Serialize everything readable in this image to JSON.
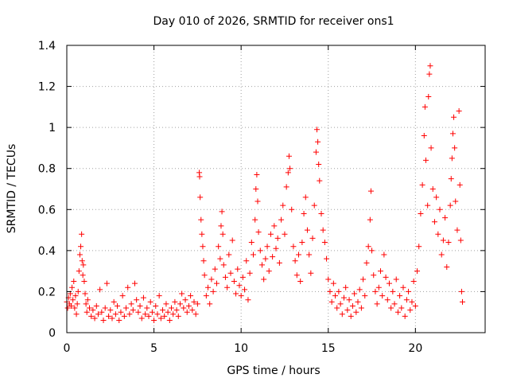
{
  "chart_data": {
    "type": "scatter",
    "title": "Day 010 of 2026, SRMTID for receiver ons1",
    "xlabel": "GPS time / hours",
    "ylabel": "SRMTID / TECUs",
    "xlim": [
      0,
      24
    ],
    "ylim": [
      0,
      1.4
    ],
    "xticks": [
      0,
      5,
      10,
      15,
      20
    ],
    "xtick_labels": [
      "0",
      "5",
      "10",
      "15",
      "20"
    ],
    "yticks": [
      0,
      0.2,
      0.4,
      0.6,
      0.8,
      1.0,
      1.2,
      1.4
    ],
    "ytick_labels": [
      "0",
      "0.2",
      "0.4",
      "0.6",
      "0.8",
      "1",
      "1.2",
      "1.4"
    ],
    "grid": true,
    "marker": "+",
    "color": "#ff0000",
    "series": [
      {
        "name": "ons1 SRMTID",
        "points": [
          [
            0.0,
            0.15
          ],
          [
            0.05,
            0.12
          ],
          [
            0.1,
            0.17
          ],
          [
            0.15,
            0.14
          ],
          [
            0.2,
            0.19
          ],
          [
            0.25,
            0.13
          ],
          [
            0.3,
            0.22
          ],
          [
            0.35,
            0.16
          ],
          [
            0.4,
            0.25
          ],
          [
            0.45,
            0.12
          ],
          [
            0.5,
            0.18
          ],
          [
            0.55,
            0.09
          ],
          [
            0.6,
            0.14
          ],
          [
            0.65,
            0.2
          ],
          [
            0.7,
            0.3
          ],
          [
            0.75,
            0.38
          ],
          [
            0.8,
            0.42
          ],
          [
            0.85,
            0.48
          ],
          [
            0.88,
            0.35
          ],
          [
            0.92,
            0.28
          ],
          [
            0.95,
            0.33
          ],
          [
            1.0,
            0.25
          ],
          [
            1.05,
            0.19
          ],
          [
            1.1,
            0.14
          ],
          [
            1.15,
            0.1
          ],
          [
            1.2,
            0.16
          ],
          [
            1.3,
            0.12
          ],
          [
            1.4,
            0.08
          ],
          [
            1.5,
            0.11
          ],
          [
            1.6,
            0.07
          ],
          [
            1.7,
            0.13
          ],
          [
            1.8,
            0.09
          ],
          [
            1.9,
            0.21
          ],
          [
            2.0,
            0.1
          ],
          [
            2.1,
            0.06
          ],
          [
            2.2,
            0.12
          ],
          [
            2.3,
            0.24
          ],
          [
            2.4,
            0.08
          ],
          [
            2.5,
            0.11
          ],
          [
            2.6,
            0.07
          ],
          [
            2.7,
            0.15
          ],
          [
            2.8,
            0.09
          ],
          [
            2.9,
            0.13
          ],
          [
            3.0,
            0.06
          ],
          [
            3.1,
            0.1
          ],
          [
            3.2,
            0.18
          ],
          [
            3.3,
            0.08
          ],
          [
            3.4,
            0.12
          ],
          [
            3.5,
            0.22
          ],
          [
            3.6,
            0.09
          ],
          [
            3.7,
            0.14
          ],
          [
            3.8,
            0.11
          ],
          [
            3.9,
            0.24
          ],
          [
            4.0,
            0.16
          ],
          [
            4.1,
            0.1
          ],
          [
            4.2,
            0.13
          ],
          [
            4.3,
            0.07
          ],
          [
            4.4,
            0.17
          ],
          [
            4.5,
            0.09
          ],
          [
            4.6,
            0.12
          ],
          [
            4.7,
            0.08
          ],
          [
            4.8,
            0.15
          ],
          [
            4.9,
            0.1
          ],
          [
            5.0,
            0.06
          ],
          [
            5.1,
            0.13
          ],
          [
            5.2,
            0.09
          ],
          [
            5.3,
            0.18
          ],
          [
            5.4,
            0.07
          ],
          [
            5.5,
            0.11
          ],
          [
            5.6,
            0.08
          ],
          [
            5.7,
            0.14
          ],
          [
            5.8,
            0.1
          ],
          [
            5.9,
            0.06
          ],
          [
            6.0,
            0.12
          ],
          [
            6.1,
            0.09
          ],
          [
            6.2,
            0.15
          ],
          [
            6.3,
            0.11
          ],
          [
            6.4,
            0.08
          ],
          [
            6.5,
            0.14
          ],
          [
            6.6,
            0.19
          ],
          [
            6.7,
            0.12
          ],
          [
            6.8,
            0.16
          ],
          [
            6.9,
            0.1
          ],
          [
            7.0,
            0.13
          ],
          [
            7.1,
            0.18
          ],
          [
            7.2,
            0.11
          ],
          [
            7.3,
            0.15
          ],
          [
            7.4,
            0.09
          ],
          [
            7.5,
            0.14
          ],
          [
            7.6,
            0.78
          ],
          [
            7.62,
            0.76
          ],
          [
            7.65,
            0.66
          ],
          [
            7.7,
            0.55
          ],
          [
            7.75,
            0.48
          ],
          [
            7.8,
            0.42
          ],
          [
            7.85,
            0.35
          ],
          [
            7.9,
            0.28
          ],
          [
            8.0,
            0.18
          ],
          [
            8.1,
            0.22
          ],
          [
            8.2,
            0.14
          ],
          [
            8.3,
            0.26
          ],
          [
            8.4,
            0.2
          ],
          [
            8.5,
            0.31
          ],
          [
            8.6,
            0.24
          ],
          [
            8.7,
            0.42
          ],
          [
            8.8,
            0.36
          ],
          [
            8.85,
            0.52
          ],
          [
            8.9,
            0.59
          ],
          [
            8.95,
            0.48
          ],
          [
            9.0,
            0.33
          ],
          [
            9.1,
            0.27
          ],
          [
            9.2,
            0.22
          ],
          [
            9.3,
            0.38
          ],
          [
            9.4,
            0.29
          ],
          [
            9.5,
            0.45
          ],
          [
            9.6,
            0.25
          ],
          [
            9.7,
            0.19
          ],
          [
            9.8,
            0.31
          ],
          [
            9.9,
            0.23
          ],
          [
            10.0,
            0.18
          ],
          [
            10.1,
            0.27
          ],
          [
            10.2,
            0.21
          ],
          [
            10.3,
            0.35
          ],
          [
            10.4,
            0.16
          ],
          [
            10.5,
            0.29
          ],
          [
            10.6,
            0.44
          ],
          [
            10.7,
            0.38
          ],
          [
            10.8,
            0.55
          ],
          [
            10.85,
            0.7
          ],
          [
            10.9,
            0.77
          ],
          [
            10.95,
            0.64
          ],
          [
            11.0,
            0.49
          ],
          [
            11.1,
            0.4
          ],
          [
            11.2,
            0.33
          ],
          [
            11.3,
            0.26
          ],
          [
            11.4,
            0.36
          ],
          [
            11.5,
            0.42
          ],
          [
            11.6,
            0.3
          ],
          [
            11.7,
            0.48
          ],
          [
            11.8,
            0.37
          ],
          [
            11.9,
            0.52
          ],
          [
            12.0,
            0.41
          ],
          [
            12.1,
            0.46
          ],
          [
            12.2,
            0.34
          ],
          [
            12.3,
            0.55
          ],
          [
            12.4,
            0.62
          ],
          [
            12.5,
            0.48
          ],
          [
            12.6,
            0.71
          ],
          [
            12.7,
            0.78
          ],
          [
            12.75,
            0.86
          ],
          [
            12.8,
            0.8
          ],
          [
            12.9,
            0.6
          ],
          [
            13.0,
            0.42
          ],
          [
            13.1,
            0.35
          ],
          [
            13.2,
            0.28
          ],
          [
            13.3,
            0.38
          ],
          [
            13.4,
            0.25
          ],
          [
            13.5,
            0.44
          ],
          [
            13.6,
            0.58
          ],
          [
            13.7,
            0.66
          ],
          [
            13.8,
            0.5
          ],
          [
            13.9,
            0.38
          ],
          [
            14.0,
            0.29
          ],
          [
            14.1,
            0.46
          ],
          [
            14.2,
            0.62
          ],
          [
            14.3,
            0.88
          ],
          [
            14.35,
            0.99
          ],
          [
            14.4,
            0.93
          ],
          [
            14.45,
            0.82
          ],
          [
            14.5,
            0.74
          ],
          [
            14.6,
            0.58
          ],
          [
            14.7,
            0.5
          ],
          [
            14.8,
            0.44
          ],
          [
            14.9,
            0.36
          ],
          [
            15.0,
            0.26
          ],
          [
            15.1,
            0.2
          ],
          [
            15.2,
            0.15
          ],
          [
            15.3,
            0.24
          ],
          [
            15.4,
            0.18
          ],
          [
            15.5,
            0.12
          ],
          [
            15.6,
            0.2
          ],
          [
            15.7,
            0.14
          ],
          [
            15.8,
            0.09
          ],
          [
            15.9,
            0.17
          ],
          [
            16.0,
            0.22
          ],
          [
            16.1,
            0.11
          ],
          [
            16.2,
            0.16
          ],
          [
            16.3,
            0.08
          ],
          [
            16.4,
            0.13
          ],
          [
            16.5,
            0.19
          ],
          [
            16.6,
            0.1
          ],
          [
            16.7,
            0.15
          ],
          [
            16.8,
            0.21
          ],
          [
            16.9,
            0.12
          ],
          [
            17.0,
            0.26
          ],
          [
            17.1,
            0.18
          ],
          [
            17.2,
            0.34
          ],
          [
            17.3,
            0.42
          ],
          [
            17.4,
            0.55
          ],
          [
            17.45,
            0.69
          ],
          [
            17.5,
            0.4
          ],
          [
            17.6,
            0.28
          ],
          [
            17.7,
            0.2
          ],
          [
            17.8,
            0.14
          ],
          [
            17.9,
            0.22
          ],
          [
            18.0,
            0.3
          ],
          [
            18.1,
            0.18
          ],
          [
            18.2,
            0.38
          ],
          [
            18.3,
            0.27
          ],
          [
            18.4,
            0.16
          ],
          [
            18.5,
            0.24
          ],
          [
            18.6,
            0.12
          ],
          [
            18.7,
            0.2
          ],
          [
            18.8,
            0.14
          ],
          [
            18.9,
            0.26
          ],
          [
            19.0,
            0.1
          ],
          [
            19.1,
            0.18
          ],
          [
            19.2,
            0.12
          ],
          [
            19.3,
            0.22
          ],
          [
            19.4,
            0.08
          ],
          [
            19.5,
            0.16
          ],
          [
            19.6,
            0.2
          ],
          [
            19.7,
            0.11
          ],
          [
            19.8,
            0.15
          ],
          [
            19.9,
            0.25
          ],
          [
            20.0,
            0.13
          ],
          [
            20.1,
            0.3
          ],
          [
            20.2,
            0.42
          ],
          [
            20.3,
            0.58
          ],
          [
            20.4,
            0.72
          ],
          [
            20.5,
            0.96
          ],
          [
            20.55,
            1.1
          ],
          [
            20.6,
            0.84
          ],
          [
            20.7,
            0.62
          ],
          [
            20.75,
            1.15
          ],
          [
            20.8,
            1.26
          ],
          [
            20.85,
            1.3
          ],
          [
            20.9,
            0.9
          ],
          [
            21.0,
            0.7
          ],
          [
            21.1,
            0.54
          ],
          [
            21.2,
            0.66
          ],
          [
            21.3,
            0.48
          ],
          [
            21.4,
            0.6
          ],
          [
            21.5,
            0.38
          ],
          [
            21.6,
            0.45
          ],
          [
            21.7,
            0.56
          ],
          [
            21.8,
            0.32
          ],
          [
            21.9,
            0.44
          ],
          [
            22.0,
            0.62
          ],
          [
            22.05,
            0.75
          ],
          [
            22.1,
            0.85
          ],
          [
            22.15,
            0.97
          ],
          [
            22.2,
            1.05
          ],
          [
            22.25,
            0.9
          ],
          [
            22.3,
            0.64
          ],
          [
            22.4,
            0.5
          ],
          [
            22.5,
            1.08
          ],
          [
            22.55,
            0.72
          ],
          [
            22.6,
            0.45
          ],
          [
            22.65,
            0.2
          ],
          [
            22.7,
            0.15
          ]
        ]
      }
    ]
  }
}
